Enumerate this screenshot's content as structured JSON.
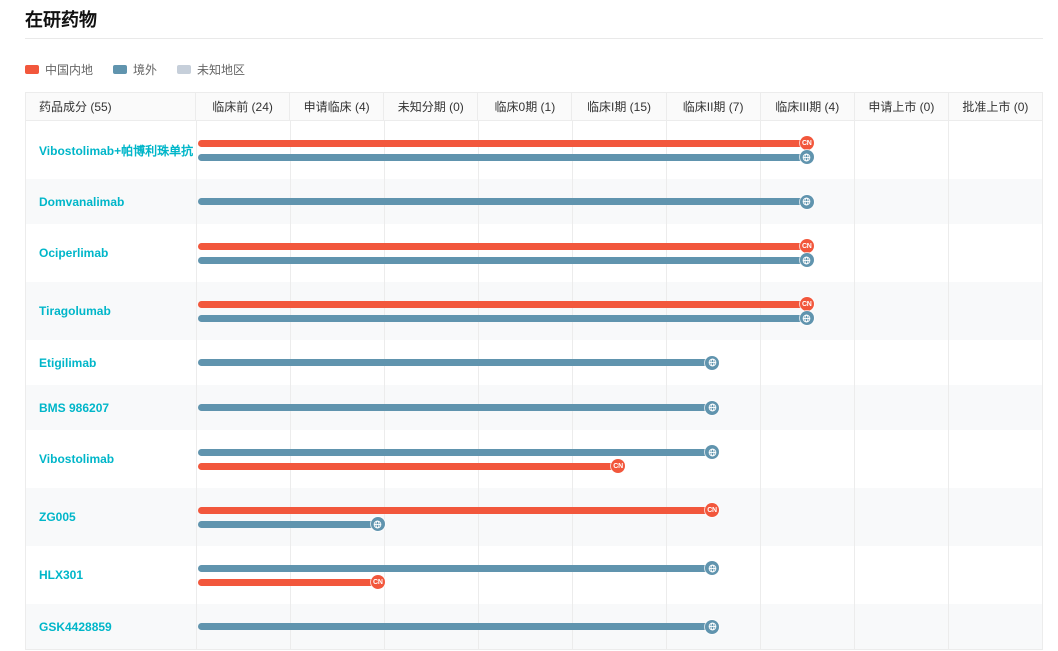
{
  "page": {
    "title": "在研药物"
  },
  "legend": {
    "items": [
      {
        "label": "中国内地",
        "color": "#f2573c"
      },
      {
        "label": "境外",
        "color": "#6094ae"
      },
      {
        "label": "未知地区",
        "color": "#c6cfda"
      }
    ]
  },
  "table": {
    "name_header": "药品成分 (55)",
    "phase_headers": [
      "临床前 (24)",
      "申请临床 (4)",
      "未知分期 (0)",
      "临床0期 (1)",
      "临床I期 (15)",
      "临床II期 (7)",
      "临床III期 (4)",
      "申请上市 (0)",
      "批准上市 (0)"
    ],
    "badges": {
      "cn_label": "CN"
    },
    "rows": [
      {
        "drug": "Vibostolimab+帕博利珠单抗",
        "bars": [
          {
            "region": "cn",
            "end_pct": 72.2
          },
          {
            "region": "overseas",
            "end_pct": 72.2
          }
        ]
      },
      {
        "drug": "Domvanalimab",
        "bars": [
          {
            "region": "overseas",
            "end_pct": 72.2
          }
        ]
      },
      {
        "drug": "Ociperlimab",
        "bars": [
          {
            "region": "cn",
            "end_pct": 72.2
          },
          {
            "region": "overseas",
            "end_pct": 72.2
          }
        ]
      },
      {
        "drug": "Tiragolumab",
        "bars": [
          {
            "region": "cn",
            "end_pct": 72.2
          },
          {
            "region": "overseas",
            "end_pct": 72.2
          }
        ]
      },
      {
        "drug": "Etigilimab",
        "bars": [
          {
            "region": "overseas",
            "end_pct": 61.0
          }
        ]
      },
      {
        "drug": "BMS 986207",
        "bars": [
          {
            "region": "overseas",
            "end_pct": 61.0
          }
        ]
      },
      {
        "drug": "Vibostolimab",
        "bars": [
          {
            "region": "overseas",
            "end_pct": 61.0
          },
          {
            "region": "cn",
            "end_pct": 49.9
          }
        ]
      },
      {
        "drug": "ZG005",
        "bars": [
          {
            "region": "cn",
            "end_pct": 61.0
          },
          {
            "region": "overseas",
            "end_pct": 21.5
          }
        ]
      },
      {
        "drug": "HLX301",
        "bars": [
          {
            "region": "overseas",
            "end_pct": 61.0
          },
          {
            "region": "cn",
            "end_pct": 21.5
          }
        ]
      },
      {
        "drug": "GSK4428859",
        "bars": [
          {
            "region": "overseas",
            "end_pct": 61.0
          }
        ]
      }
    ]
  },
  "chart_data": {
    "type": "bar",
    "orientation": "horizontal",
    "title": "在研药物",
    "legend": [
      "中国内地",
      "境外",
      "未知地区"
    ],
    "legend_position": "top-left",
    "grid": true,
    "categories": [
      "Vibostolimab+帕博利珠单抗",
      "Domvanalimab",
      "Ociperlimab",
      "Tiragolumab",
      "Etigilimab",
      "BMS 986207",
      "Vibostolimab",
      "ZG005",
      "HLX301",
      "GSK4428859"
    ],
    "phases": [
      "临床前",
      "申请临床",
      "未知分期",
      "临床0期",
      "临床I期",
      "临床II期",
      "临床III期",
      "申请上市",
      "批准上市"
    ],
    "phase_counts": {
      "药品成分": 55,
      "临床前": 24,
      "申请临床": 4,
      "未知分期": 0,
      "临床0期": 1,
      "临床I期": 15,
      "临床II期": 7,
      "临床III期": 4,
      "申请上市": 0,
      "批准上市": 0
    },
    "series": [
      {
        "name": "中国内地",
        "color": "#f2573c",
        "phase_reached": [
          "临床III期",
          null,
          "临床III期",
          "临床III期",
          null,
          null,
          "临床I期",
          "临床II期",
          "申请临床",
          null
        ]
      },
      {
        "name": "境外",
        "color": "#6094ae",
        "phase_reached": [
          "临床III期",
          "临床III期",
          "临床III期",
          "临床III期",
          "临床II期",
          "临床II期",
          "临床II期",
          "申请临床",
          "临床II期",
          "临床II期"
        ]
      }
    ]
  }
}
